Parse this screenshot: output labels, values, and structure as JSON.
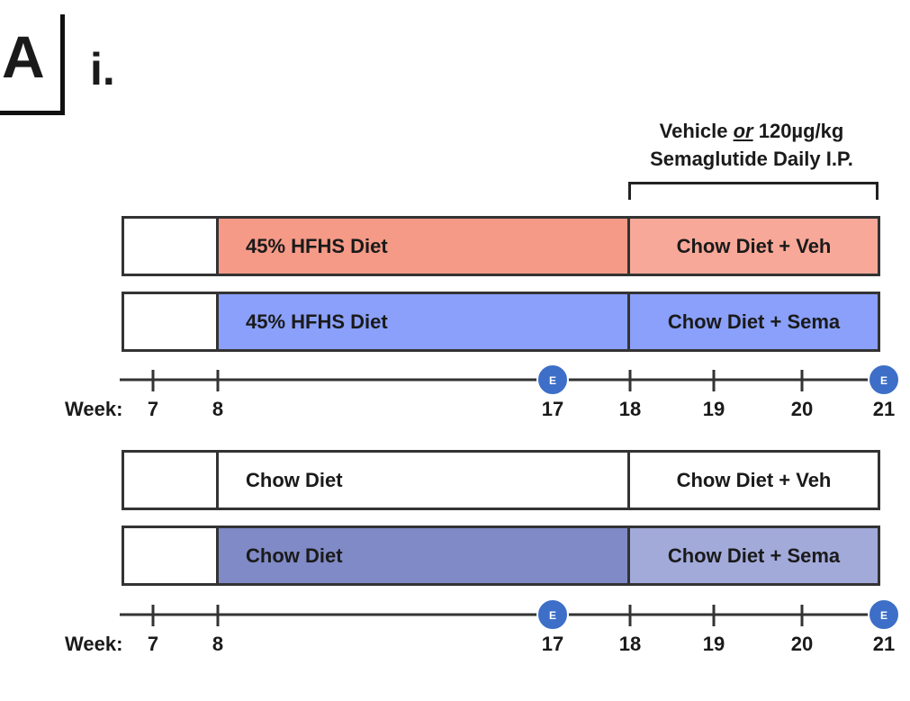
{
  "panel": {
    "letter": "A",
    "sub_label": "i."
  },
  "treatment": {
    "line1_a": "Vehicle ",
    "line1_or": "or",
    "line1_b": " 120µg/kg",
    "line2": "Semaglutide Daily I.P."
  },
  "colors": {
    "hfhs_veh_diet": "#F59A87",
    "hfhs_veh_treat": "#F8A898",
    "hfhs_sema": "#8AA0FA",
    "chow_veh": "#FFFFFF",
    "chow_sema_diet": "#7F8AC6",
    "chow_sema_treat": "#A2AADA",
    "marker": "#3D6FC8"
  },
  "group1": {
    "bars": [
      {
        "diet": "45% HFHS Diet",
        "treatment": "Chow Diet + Veh"
      },
      {
        "diet": "45% HFHS Diet",
        "treatment": "Chow Diet + Sema"
      }
    ]
  },
  "group2": {
    "bars": [
      {
        "diet": "Chow Diet",
        "treatment": "Chow Diet + Veh"
      },
      {
        "diet": "Chow Diet",
        "treatment": "Chow Diet + Sema"
      }
    ]
  },
  "axis": {
    "label": "Week:",
    "weeks": [
      7,
      8,
      17,
      18,
      19,
      20,
      21
    ],
    "marker_weeks": [
      17,
      21
    ],
    "marker_letter": "E"
  }
}
